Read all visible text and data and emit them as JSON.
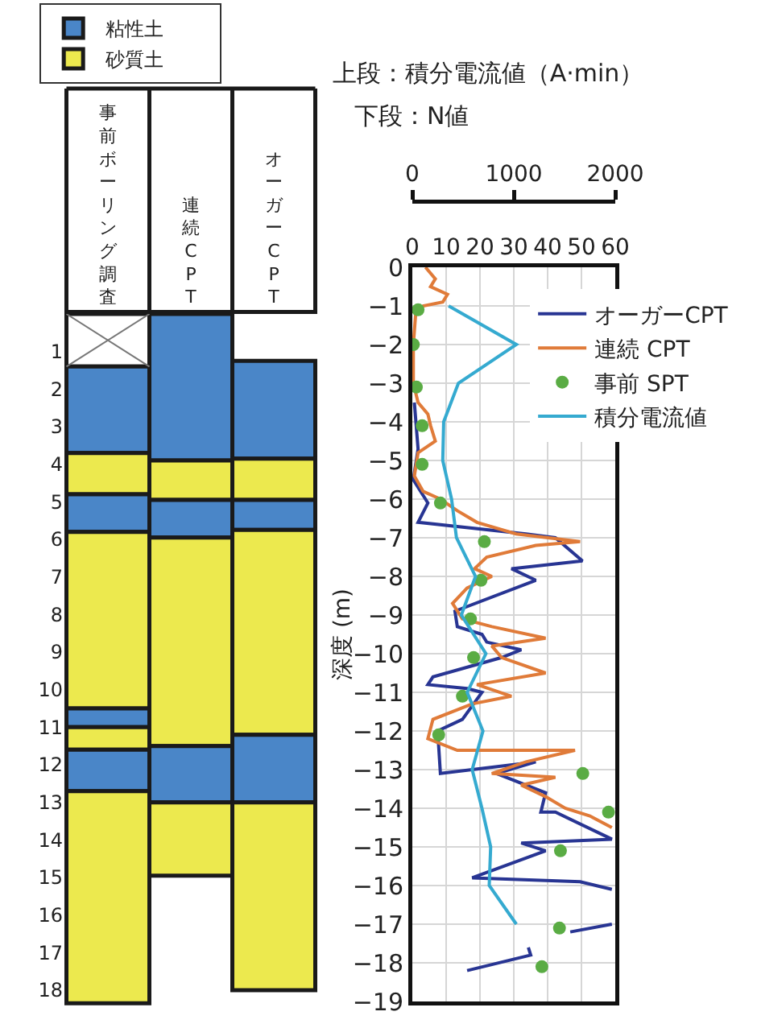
{
  "chart_data": [
    {
      "type": "bar",
      "categories": [
        "事前ボーリング調査",
        "連続CPT",
        "オーガーCPT"
      ],
      "ylim": [
        18.9,
        0
      ],
      "yticks": [
        1,
        2,
        3,
        4,
        5,
        6,
        7,
        8,
        9,
        10,
        11,
        12,
        13,
        14,
        15,
        16,
        17,
        18
      ],
      "legend": "top",
      "series": [
        {
          "color": "#ffffff",
          "values": [
            1.4,
            null,
            null
          ],
          "base": [
            0,
            null,
            null
          ]
        },
        {
          "name": "粘性土",
          "color": "#4a86c8",
          "values": [
            2.3,
            3.9,
            2.6
          ],
          "base": [
            1.4,
            0,
            1.25
          ]
        },
        {
          "name": "砂質土",
          "color": "#ece94e",
          "values": [
            1.1,
            1.05,
            1.1
          ],
          "base": [
            3.7,
            3.9,
            3.85
          ]
        },
        {
          "color": "#4a86c8",
          "values": [
            1.0,
            1.0,
            0.8
          ],
          "base": [
            4.8,
            4.95,
            4.95
          ]
        },
        {
          "color": "#ece94e",
          "values": [
            4.7,
            5.55,
            5.45
          ],
          "base": [
            5.8,
            5.95,
            5.75
          ]
        },
        {
          "color": "#4a86c8",
          "values": [
            0.5,
            1.5,
            1.8
          ],
          "base": [
            10.5,
            11.5,
            11.2
          ]
        },
        {
          "color": "#ece94e",
          "values": [
            0.6,
            1.95,
            5.0
          ],
          "base": [
            11.0,
            13.0,
            13.0
          ]
        },
        {
          "color": "#4a86c8",
          "values": [
            1.1,
            null,
            null
          ],
          "base": [
            11.6,
            null,
            null
          ]
        },
        {
          "color": "#ece94e",
          "values": [
            5.65,
            null,
            null
          ],
          "base": [
            12.7,
            null,
            null
          ]
        }
      ]
    },
    {
      "type": "line",
      "title": "上段：積分電流値（A·min）",
      "subtitle": "下段：N値",
      "ylabel": "深度 (m)",
      "xlim": [
        0,
        60
      ],
      "xticks": [
        0,
        10,
        20,
        30,
        40,
        50,
        60
      ],
      "x2lim": [
        0,
        2000
      ],
      "x2ticks": [
        0,
        1000,
        2000
      ],
      "ylim": [
        -19,
        0
      ],
      "yticks": [
        0,
        -1,
        -2,
        -3,
        -4,
        -5,
        -6,
        -7,
        -8,
        -9,
        -10,
        -11,
        -12,
        -13,
        -14,
        -15,
        -16,
        -17,
        -18,
        -19
      ],
      "grid": true,
      "legend": "top right",
      "series": [
        {
          "name": "オーガーCPT",
          "color": "#283593",
          "type": "line",
          "x": [
            0.6,
            1.7,
            0.3,
            4.6,
            1.7,
            33.6,
            42.3,
            50.3,
            29.3,
            36.5,
            12.6,
            13.3,
            20.6,
            22,
            32.2,
            26.4,
            6.1,
            4.6,
            16.2,
            20.6,
            14.8,
            7.5,
            8.3,
            36.5,
            24.9,
            39.4,
            38,
            42.3,
            59,
            32.2,
            39.4,
            17.7,
            49.6,
            59,
            null,
            46.7,
            59,
            null,
            16.2,
            35,
            34.3
          ],
          "values": [
            -3.5,
            -4.7,
            -5.5,
            -6.1,
            -6.6,
            -6.9,
            -7.0,
            -7.6,
            -7.8,
            -8.1,
            -8.9,
            -9.3,
            -9.5,
            -9.7,
            -9.9,
            -10.1,
            -10.6,
            -10.8,
            -10.9,
            -11.0,
            -11.7,
            -12.0,
            -13.1,
            -12.8,
            -13.1,
            -13.6,
            -14.1,
            -14.1,
            -14.8,
            -14.9,
            -15.1,
            -15.8,
            -15.9,
            -16.1,
            null,
            -17.2,
            -17.0,
            null,
            -18.2,
            -17.8,
            -17.6
          ]
        },
        {
          "name": "連続 CPT",
          "color": "#e07b39",
          "type": "line",
          "x": [
            3.9,
            6.8,
            5.4,
            10.4,
            9,
            3.2,
            1,
            0.3,
            0.3,
            1.7,
            4.6,
            5.4,
            6.8,
            1.7,
            0.6,
            3.2,
            8.3,
            13.3,
            19.1,
            30.7,
            49.6,
            36.5,
            22,
            18.4,
            23.5,
            16.2,
            11.9,
            14.8,
            23.5,
            39.4,
            23.5,
            26.4,
            39.4,
            19.1,
            29.3,
            17.7,
            6.1,
            4.6,
            13.3,
            48.1,
            33.6,
            23.5,
            42.3,
            32.2,
            39.4,
            45.2,
            52.5,
            59
          ],
          "values": [
            0,
            -0.3,
            -0.5,
            -0.7,
            -0.9,
            -1.0,
            -1.2,
            -2,
            -3,
            -3.5,
            -3.8,
            -4.1,
            -4.5,
            -4.8,
            -5.4,
            -5.8,
            -6.0,
            -6.3,
            -6.6,
            -6.9,
            -7.1,
            -7.2,
            -7.5,
            -7.8,
            -8.0,
            -8.3,
            -8.7,
            -9.1,
            -9.3,
            -9.6,
            -9.8,
            -10.1,
            -10.5,
            -10.8,
            -11.1,
            -11.3,
            -11.7,
            -12.2,
            -12.5,
            -12.5,
            -12.8,
            -13.1,
            -13.2,
            -13.4,
            -13.7,
            -14.0,
            -14.2,
            -14.5
          ]
        },
        {
          "name": "事前 SPT",
          "color": "#5aac44",
          "type": "scatter",
          "marker": "circle",
          "x": [
            1.7,
            0.3,
            1.2,
            2.9,
            2.9,
            8.3,
            21.3,
            20.3,
            17.2,
            18.1,
            14.8,
            7.8,
            50.4,
            58,
            43.8,
            43.5,
            38.3
          ],
          "values": [
            -1.1,
            -2,
            -3.1,
            -4.1,
            -5.1,
            -6.1,
            -7.1,
            -8.1,
            -9.1,
            -10.1,
            -11.1,
            -12.1,
            -13.1,
            -14.1,
            -15.1,
            -17.1,
            -18.1
          ]
        },
        {
          "name": "積分電流値",
          "color": "#35aad0",
          "type": "line",
          "axis": "x2",
          "x": [
            358,
            1025,
            454,
            309,
            300,
            387,
            435,
            623,
            483,
            725,
            541,
            696,
            590,
            686,
            772,
            758,
            1025
          ],
          "values": [
            -1,
            -2,
            -3,
            -4,
            -5,
            -6,
            -7,
            -8,
            -9,
            -10,
            -11,
            -12,
            -13,
            -14,
            -15,
            -16,
            -17
          ]
        }
      ]
    }
  ]
}
